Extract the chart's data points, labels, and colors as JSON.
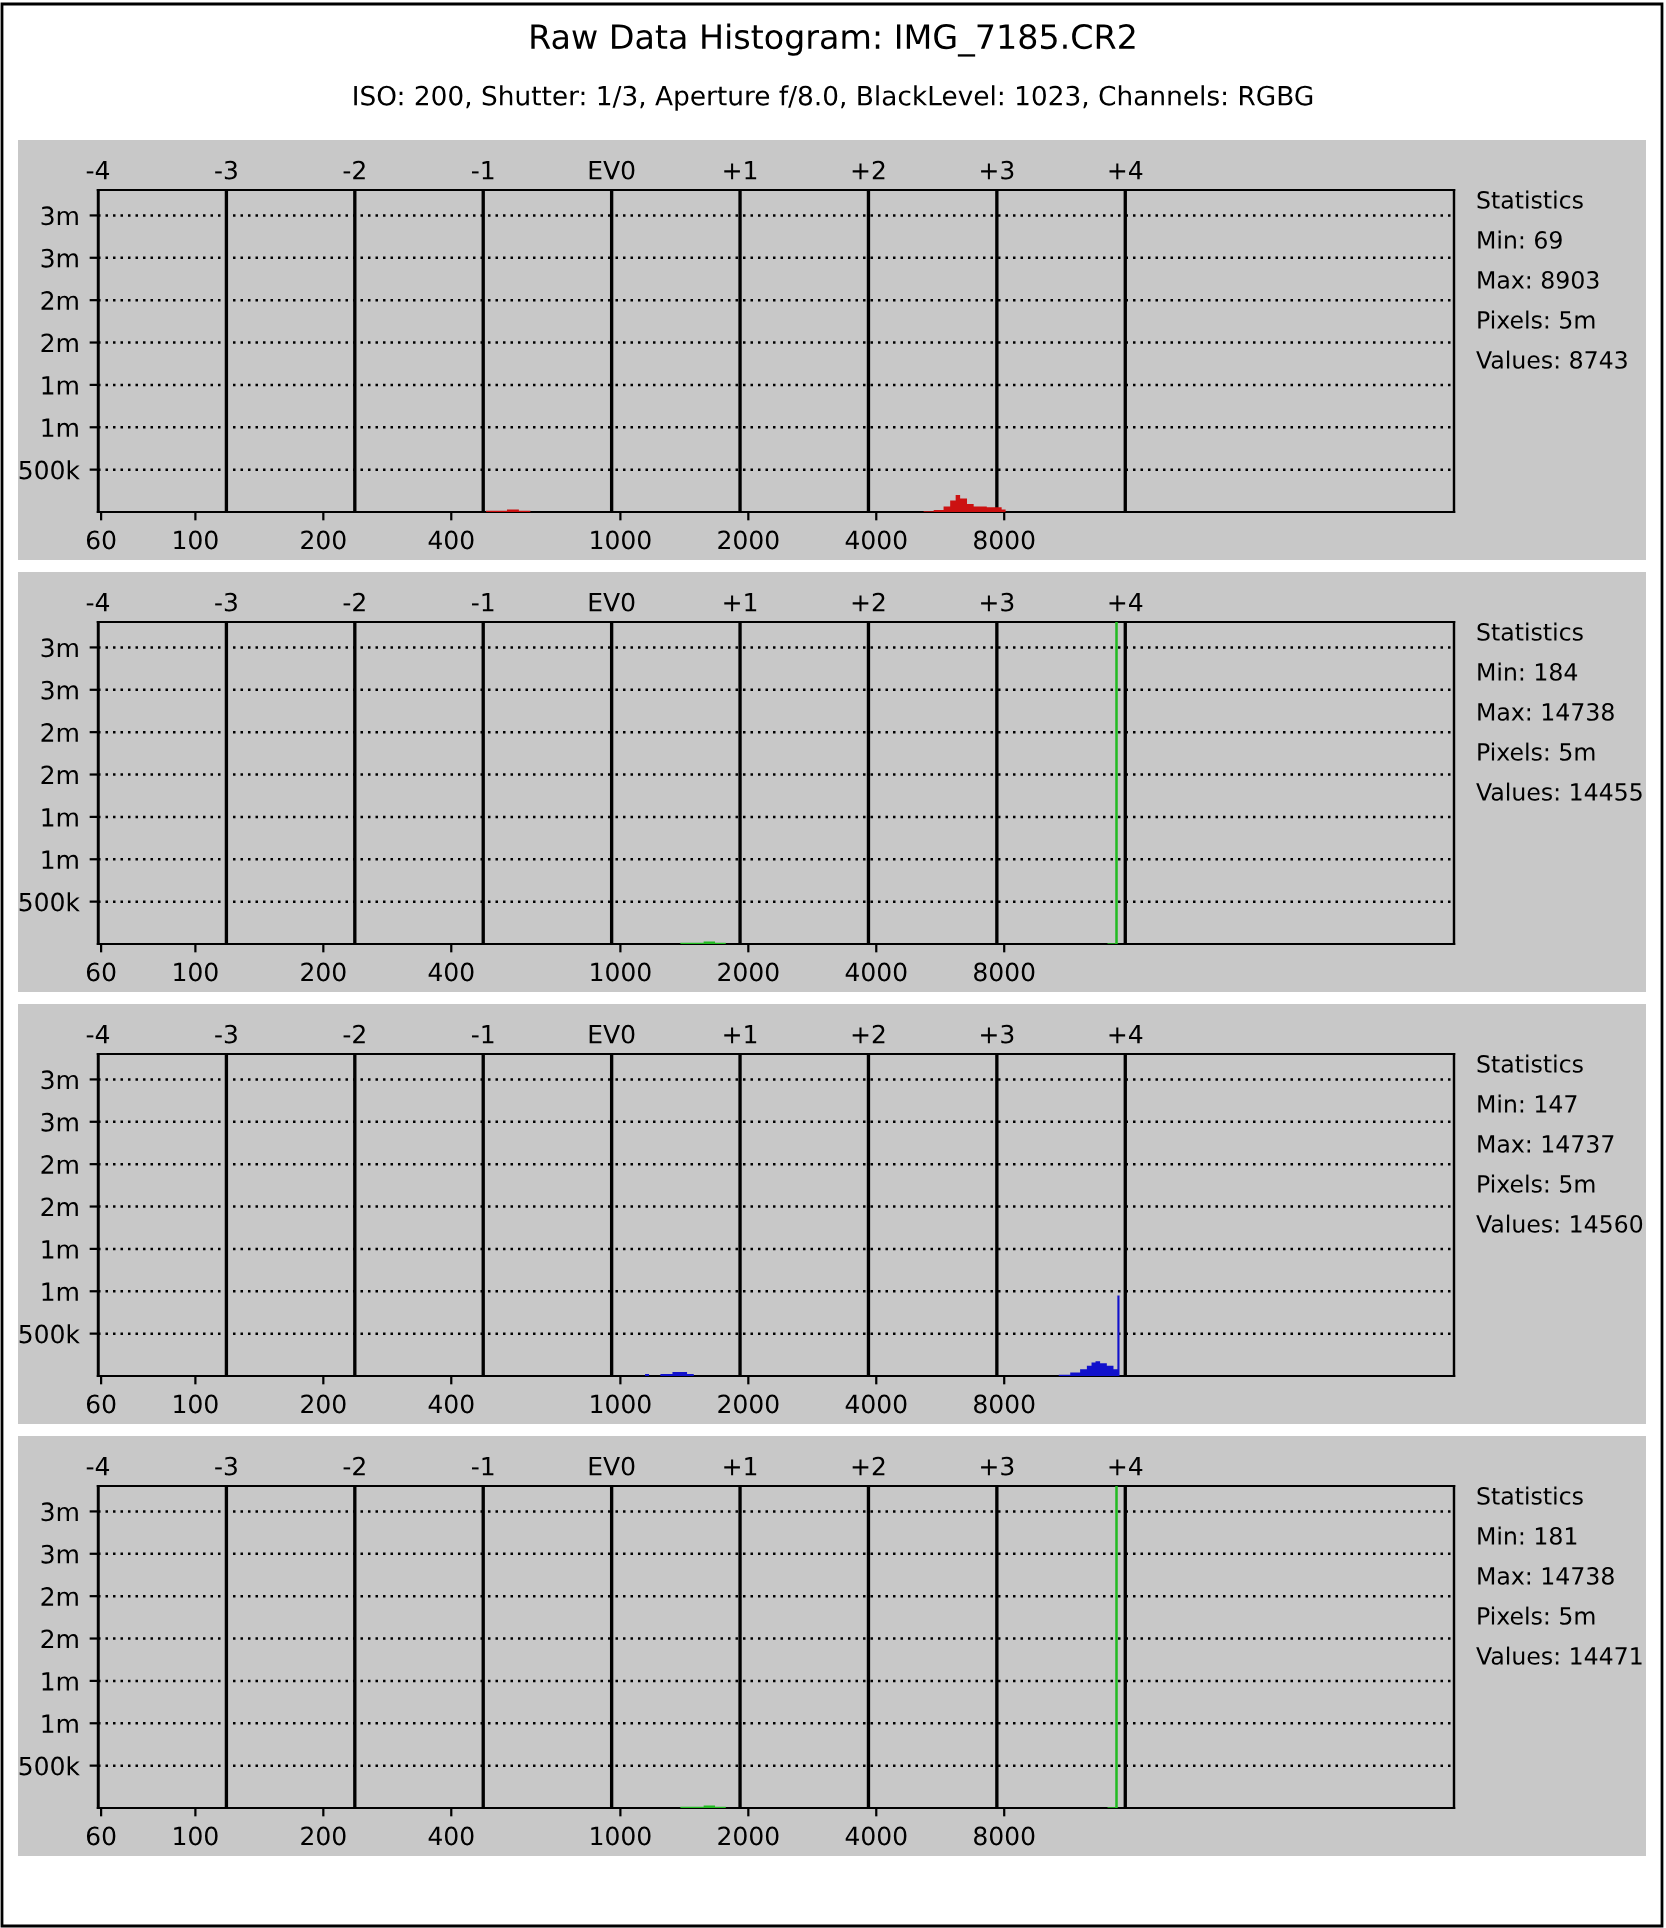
{
  "chart_data": [
    {
      "type": "histogram",
      "title": "Raw Data Histogram: IMG_7185.CR2",
      "subtitle": "ISO: 200, Shutter: 1/3, Aperture f/8.0, BlackLevel: 1023, Channels: RGBG",
      "bins": [
        483,
        541,
        577,
        614,
        5170,
        5460,
        5760,
        5970,
        6150,
        6300,
        6540,
        6780,
        7280,
        7690,
        7890,
        8060
      ],
      "values": [
        15000,
        30000,
        15000,
        0,
        10000,
        25000,
        65000,
        135000,
        200000,
        160000,
        95000,
        65000,
        55000,
        55000,
        30000
      ],
      "color": "#cc1111",
      "log": "x",
      "grid": true,
      "xlim": [
        59,
        91500
      ],
      "xticks": [
        60,
        100,
        200,
        400,
        1000,
        2000,
        4000,
        8000
      ],
      "x2lim": [
        -4,
        6.56
      ],
      "x2ticks": [
        -4,
        -3,
        -2,
        -1,
        {
          "value": 0,
          "label": "EV0"
        },
        {
          "value": 1,
          "label": "+1"
        },
        {
          "value": 2,
          "label": "+2"
        },
        {
          "value": 3,
          "label": "+3"
        },
        {
          "value": 4,
          "label": "+4"
        }
      ],
      "ylim": [
        0,
        3800000
      ],
      "yticks": [
        {
          "value": 500000,
          "label": "500k"
        },
        {
          "value": 1000000,
          "label": "1m"
        },
        {
          "value": 1500000,
          "label": "1m"
        },
        {
          "value": 2000000,
          "label": "2m"
        },
        {
          "value": 2500000,
          "label": "2m"
        },
        {
          "value": 3000000,
          "label": "3m"
        },
        {
          "value": 3500000,
          "label": "3m"
        }
      ],
      "annotations": [
        "Statistics",
        "Min: 69",
        "Max: 8903",
        "Pixels: 5m",
        "Values: 8743"
      ]
    },
    {
      "type": "histogram",
      "bins": [
        1384,
        1570,
        1670,
        1770,
        14000,
        14600,
        14800
      ],
      "values": [
        15000,
        30000,
        15000,
        0,
        8000,
        3800000
      ],
      "color": "#22bb22",
      "log": "x",
      "grid": true,
      "xlim": [
        59,
        91500
      ],
      "xticks": [
        60,
        100,
        200,
        400,
        1000,
        2000,
        4000,
        8000
      ],
      "x2lim": [
        -4,
        6.56
      ],
      "x2ticks": [
        -4,
        -3,
        -2,
        -1,
        {
          "value": 0,
          "label": "EV0"
        },
        {
          "value": 1,
          "label": "+1"
        },
        {
          "value": 2,
          "label": "+2"
        },
        {
          "value": 3,
          "label": "+3"
        },
        {
          "value": 4,
          "label": "+4"
        }
      ],
      "ylim": [
        0,
        3800000
      ],
      "yticks": [
        {
          "value": 500000,
          "label": "500k"
        },
        {
          "value": 1000000,
          "label": "1m"
        },
        {
          "value": 1500000,
          "label": "1m"
        },
        {
          "value": 2000000,
          "label": "2m"
        },
        {
          "value": 2500000,
          "label": "2m"
        },
        {
          "value": 3000000,
          "label": "3m"
        },
        {
          "value": 3500000,
          "label": "3m"
        }
      ],
      "annotations": [
        "Statistics",
        "Min: 184",
        "Max: 14738",
        "Pixels: 5m",
        "Values: 14455"
      ]
    },
    {
      "type": "histogram",
      "bins": [
        1143,
        1168,
        1242,
        1326,
        1435,
        1488,
        10750,
        11440,
        12070,
        12520,
        12840,
        13120,
        13450,
        13950,
        14460,
        14770,
        14940
      ],
      "values": [
        24000,
        0,
        24000,
        47000,
        24000,
        0,
        16000,
        40000,
        80000,
        120000,
        160000,
        175000,
        150000,
        120000,
        80000,
        950000
      ],
      "color": "#1111cc",
      "log": "x",
      "grid": true,
      "xlim": [
        59,
        91500
      ],
      "xticks": [
        60,
        100,
        200,
        400,
        1000,
        2000,
        4000,
        8000
      ],
      "x2lim": [
        -4,
        6.56
      ],
      "x2ticks": [
        -4,
        -3,
        -2,
        -1,
        {
          "value": 0,
          "label": "EV0"
        },
        {
          "value": 1,
          "label": "+1"
        },
        {
          "value": 2,
          "label": "+2"
        },
        {
          "value": 3,
          "label": "+3"
        },
        {
          "value": 4,
          "label": "+4"
        }
      ],
      "ylim": [
        0,
        3800000
      ],
      "yticks": [
        {
          "value": 500000,
          "label": "500k"
        },
        {
          "value": 1000000,
          "label": "1m"
        },
        {
          "value": 1500000,
          "label": "1m"
        },
        {
          "value": 2000000,
          "label": "2m"
        },
        {
          "value": 2500000,
          "label": "2m"
        },
        {
          "value": 3000000,
          "label": "3m"
        },
        {
          "value": 3500000,
          "label": "3m"
        }
      ],
      "annotations": [
        "Statistics",
        "Min: 147",
        "Max: 14737",
        "Pixels: 5m",
        "Values: 14560"
      ]
    },
    {
      "type": "histogram",
      "bins": [
        1384,
        1570,
        1670,
        1770,
        14000,
        14600,
        14800
      ],
      "values": [
        15000,
        30000,
        15000,
        0,
        8000,
        3800000
      ],
      "color": "#22bb22",
      "log": "x",
      "grid": true,
      "xlim": [
        59,
        91500
      ],
      "xticks": [
        60,
        100,
        200,
        400,
        1000,
        2000,
        4000,
        8000
      ],
      "x2lim": [
        -4,
        6.56
      ],
      "x2ticks": [
        -4,
        -3,
        -2,
        -1,
        {
          "value": 0,
          "label": "EV0"
        },
        {
          "value": 1,
          "label": "+1"
        },
        {
          "value": 2,
          "label": "+2"
        },
        {
          "value": 3,
          "label": "+3"
        },
        {
          "value": 4,
          "label": "+4"
        }
      ],
      "ylim": [
        0,
        3800000
      ],
      "yticks": [
        {
          "value": 500000,
          "label": "500k"
        },
        {
          "value": 1000000,
          "label": "1m"
        },
        {
          "value": 1500000,
          "label": "1m"
        },
        {
          "value": 2000000,
          "label": "2m"
        },
        {
          "value": 2500000,
          "label": "2m"
        },
        {
          "value": 3000000,
          "label": "3m"
        },
        {
          "value": 3500000,
          "label": "3m"
        }
      ],
      "annotations": [
        "Statistics",
        "Min: 181",
        "Max: 14738",
        "Pixels: 5m",
        "Values: 14471"
      ]
    }
  ]
}
